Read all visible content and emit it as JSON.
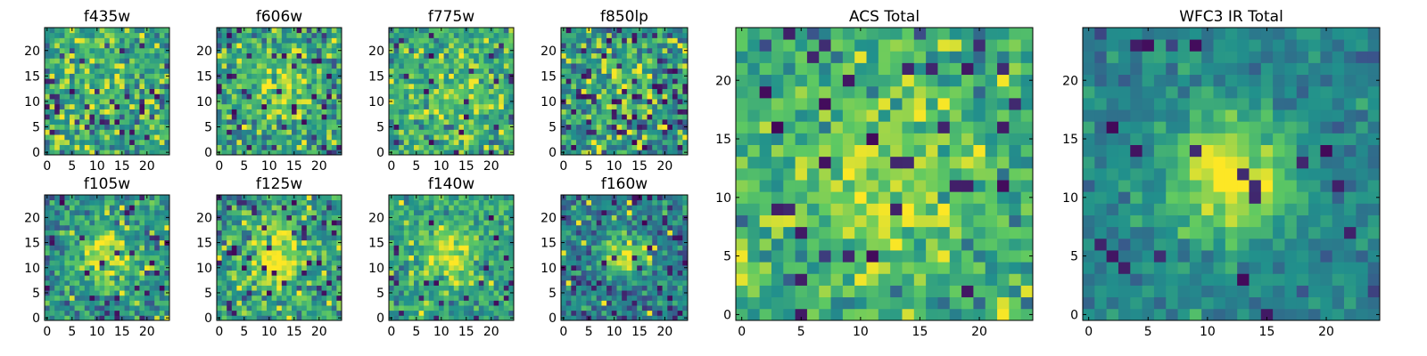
{
  "figure": {
    "background": "#ffffff"
  },
  "colormap": {
    "name": "viridis",
    "stops": [
      "#440154",
      "#3b528b",
      "#21918c",
      "#5ec962",
      "#fde725"
    ]
  },
  "chart_data": [
    {
      "type": "heatmap",
      "title": "f435w",
      "grid_size": 25,
      "xlim": [
        -0.5,
        24.5
      ],
      "ylim": [
        -0.5,
        24.5
      ],
      "xticks": [
        0,
        5,
        10,
        15,
        20
      ],
      "yticks": [
        0,
        5,
        10,
        15,
        20
      ],
      "xlabel": "",
      "ylabel": "",
      "source_center": [
        12,
        12
      ],
      "source_sigma": 6.0,
      "peak": 0.62,
      "background": 0.58,
      "noise": 0.16,
      "hot_fraction": 0.05,
      "dead_fraction": 0.05,
      "grid": false,
      "legend": "none"
    },
    {
      "type": "heatmap",
      "title": "f606w",
      "grid_size": 25,
      "xlim": [
        -0.5,
        24.5
      ],
      "ylim": [
        -0.5,
        24.5
      ],
      "xticks": [
        0,
        5,
        10,
        15,
        20
      ],
      "yticks": [
        0,
        5,
        10,
        15,
        20
      ],
      "xlabel": "",
      "ylabel": "",
      "source_center": [
        12,
        12
      ],
      "source_sigma": 4.5,
      "peak": 0.9,
      "background": 0.55,
      "noise": 0.17,
      "hot_fraction": 0.04,
      "dead_fraction": 0.06,
      "grid": false,
      "legend": "none"
    },
    {
      "type": "heatmap",
      "title": "f775w",
      "grid_size": 25,
      "xlim": [
        -0.5,
        24.5
      ],
      "ylim": [
        -0.5,
        24.5
      ],
      "xticks": [
        0,
        5,
        10,
        15,
        20
      ],
      "yticks": [
        0,
        5,
        10,
        15,
        20
      ],
      "xlabel": "",
      "ylabel": "",
      "source_center": [
        12,
        12
      ],
      "source_sigma": 5.0,
      "peak": 0.78,
      "background": 0.6,
      "noise": 0.15,
      "hot_fraction": 0.04,
      "dead_fraction": 0.04,
      "grid": false,
      "legend": "none"
    },
    {
      "type": "heatmap",
      "title": "f850lp",
      "grid_size": 25,
      "xlim": [
        -0.5,
        24.5
      ],
      "ylim": [
        -0.5,
        24.5
      ],
      "xticks": [
        0,
        5,
        10,
        15,
        20
      ],
      "yticks": [
        0,
        5,
        10,
        15,
        20
      ],
      "xlabel": "",
      "ylabel": "",
      "source_center": [
        12,
        12
      ],
      "source_sigma": 5.0,
      "peak": 0.7,
      "background": 0.5,
      "noise": 0.18,
      "hot_fraction": 0.05,
      "dead_fraction": 0.07,
      "grid": false,
      "legend": "none"
    },
    {
      "type": "heatmap",
      "title": "ACS Total",
      "grid_size": 25,
      "xlim": [
        -0.5,
        24.5
      ],
      "ylim": [
        -0.5,
        24.5
      ],
      "xticks": [
        0,
        5,
        10,
        15,
        20
      ],
      "yticks": [
        0,
        5,
        10,
        15,
        20
      ],
      "xlabel": "",
      "ylabel": "",
      "source_center": [
        12,
        12
      ],
      "source_sigma": 5.5,
      "peak": 0.85,
      "background": 0.6,
      "noise": 0.13,
      "hot_fraction": 0.04,
      "dead_fraction": 0.05,
      "grid": false,
      "legend": "none"
    },
    {
      "type": "heatmap",
      "title": "f105w",
      "grid_size": 25,
      "xlim": [
        -0.5,
        24.5
      ],
      "ylim": [
        -0.5,
        24.5
      ],
      "xticks": [
        0,
        5,
        10,
        15,
        20
      ],
      "yticks": [
        0,
        5,
        10,
        15,
        20
      ],
      "xlabel": "",
      "ylabel": "",
      "source_center": [
        12,
        12
      ],
      "source_sigma": 4.0,
      "peak": 0.95,
      "background": 0.5,
      "noise": 0.15,
      "hot_fraction": 0.02,
      "dead_fraction": 0.05,
      "grid": false,
      "legend": "none"
    },
    {
      "type": "heatmap",
      "title": "f125w",
      "grid_size": 25,
      "xlim": [
        -0.5,
        24.5
      ],
      "ylim": [
        -0.5,
        24.5
      ],
      "xticks": [
        0,
        5,
        10,
        15,
        20
      ],
      "yticks": [
        0,
        5,
        10,
        15,
        20
      ],
      "xlabel": "",
      "ylabel": "",
      "source_center": [
        12,
        12
      ],
      "source_sigma": 4.5,
      "peak": 0.95,
      "background": 0.55,
      "noise": 0.16,
      "hot_fraction": 0.03,
      "dead_fraction": 0.06,
      "grid": false,
      "legend": "none"
    },
    {
      "type": "heatmap",
      "title": "f140w",
      "grid_size": 25,
      "xlim": [
        -0.5,
        24.5
      ],
      "ylim": [
        -0.5,
        24.5
      ],
      "xticks": [
        0,
        5,
        10,
        15,
        20
      ],
      "yticks": [
        0,
        5,
        10,
        15,
        20
      ],
      "xlabel": "",
      "ylabel": "",
      "source_center": [
        12,
        13
      ],
      "source_sigma": 3.5,
      "peak": 0.95,
      "background": 0.58,
      "noise": 0.12,
      "hot_fraction": 0.02,
      "dead_fraction": 0.04,
      "grid": false,
      "legend": "none"
    },
    {
      "type": "heatmap",
      "title": "f160w",
      "grid_size": 25,
      "xlim": [
        -0.5,
        24.5
      ],
      "ylim": [
        -0.5,
        24.5
      ],
      "xticks": [
        0,
        5,
        10,
        15,
        20
      ],
      "yticks": [
        0,
        5,
        10,
        15,
        20
      ],
      "xlabel": "",
      "ylabel": "",
      "source_center": [
        12,
        12
      ],
      "source_sigma": 3.0,
      "peak": 0.95,
      "background": 0.42,
      "noise": 0.14,
      "hot_fraction": 0.02,
      "dead_fraction": 0.06,
      "grid": false,
      "legend": "none"
    },
    {
      "type": "heatmap",
      "title": "WFC3 IR Total",
      "grid_size": 25,
      "xlim": [
        -0.5,
        24.5
      ],
      "ylim": [
        -0.5,
        24.5
      ],
      "xticks": [
        0,
        5,
        10,
        15,
        20
      ],
      "yticks": [
        0,
        5,
        10,
        15,
        20
      ],
      "xlabel": "",
      "ylabel": "",
      "source_center": [
        12,
        12
      ],
      "source_sigma": 3.5,
      "peak": 1.0,
      "background": 0.45,
      "noise": 0.08,
      "hot_fraction": 0.0,
      "dead_fraction": 0.03,
      "grid": false,
      "legend": "none"
    }
  ]
}
